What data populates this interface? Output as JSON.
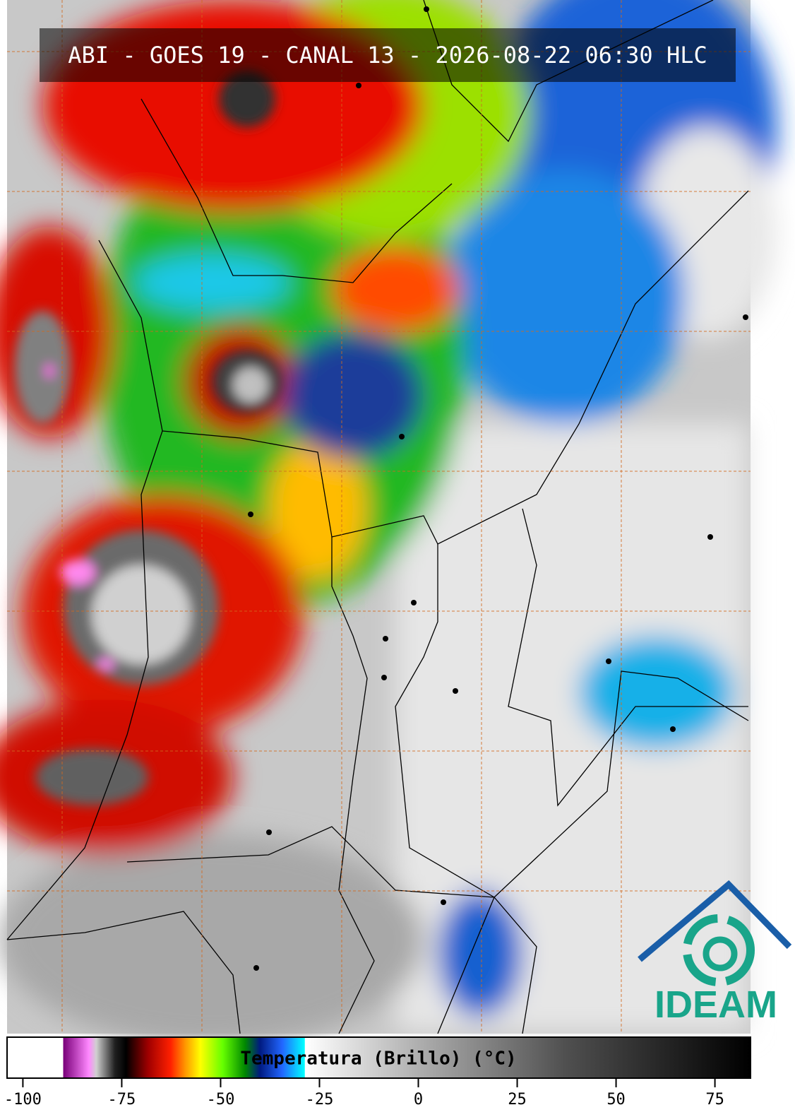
{
  "header": {
    "title": "ABI - GOES 19 - CANAL 13 - 2026-08-22 06:30 HLC"
  },
  "colorbar": {
    "label": "Temperatura (Brillo) (°C)",
    "lim": [
      -104,
      84
    ],
    "ticks": [
      {
        "value": -100,
        "label": "-100"
      },
      {
        "value": -75,
        "label": "-75"
      },
      {
        "value": -50,
        "label": "-50"
      },
      {
        "value": -25,
        "label": "-25"
      },
      0,
      25,
      50,
      75
    ]
  },
  "logo": {
    "text": "IDEAM"
  }
}
